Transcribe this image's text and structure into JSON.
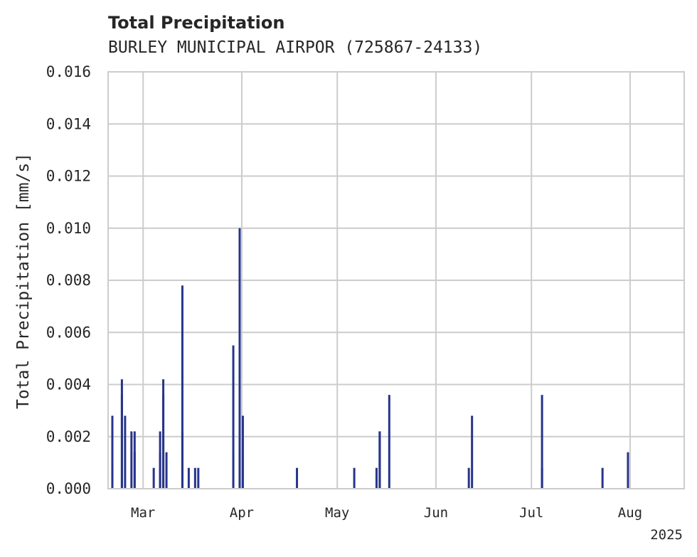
{
  "chart_data": {
    "type": "bar",
    "title": "Total Precipitation",
    "subtitle": "BURLEY MUNICIPAL AIRPOR (725867-24133)",
    "xlabel": "",
    "ylabel": "Total Precipitation [mm/s]",
    "ylim": [
      0,
      0.016
    ],
    "yticks": [
      "0.000",
      "0.002",
      "0.004",
      "0.006",
      "0.008",
      "0.010",
      "0.012",
      "0.014",
      "0.016"
    ],
    "xlim": [
      "2025-02-18",
      "2025-08-18"
    ],
    "xticks": [
      {
        "label": "Mar",
        "date": "2025-03-01"
      },
      {
        "label": "Apr",
        "date": "2025-04-01"
      },
      {
        "label": "May",
        "date": "2025-05-01"
      },
      {
        "label": "Jun",
        "date": "2025-06-01"
      },
      {
        "label": "Jul",
        "date": "2025-07-01"
      },
      {
        "label": "Aug",
        "date": "2025-08-01"
      }
    ],
    "year_label": "2025",
    "grid": true,
    "color": "#27348b",
    "series": [
      {
        "name": "Total Precipitation",
        "points": [
          {
            "date": "2025-02-19",
            "value": 0.0028
          },
          {
            "date": "2025-02-19",
            "value": 0.0008
          },
          {
            "date": "2025-02-22",
            "value": 0.0036
          },
          {
            "date": "2025-02-22",
            "value": 0.0042
          },
          {
            "date": "2025-02-23",
            "value": 0.0028
          },
          {
            "date": "2025-02-25",
            "value": 0.0022
          },
          {
            "date": "2025-02-26",
            "value": 0.0022
          },
          {
            "date": "2025-02-26",
            "value": 0.0014
          },
          {
            "date": "2025-03-04",
            "value": 0.0008
          },
          {
            "date": "2025-03-06",
            "value": 0.0014
          },
          {
            "date": "2025-03-06",
            "value": 0.0022
          },
          {
            "date": "2025-03-07",
            "value": 0.0042
          },
          {
            "date": "2025-03-07",
            "value": 0.0036
          },
          {
            "date": "2025-03-08",
            "value": 0.0014
          },
          {
            "date": "2025-03-13",
            "value": 0.0078
          },
          {
            "date": "2025-03-13",
            "value": 0.0022
          },
          {
            "date": "2025-03-15",
            "value": 0.0008
          },
          {
            "date": "2025-03-17",
            "value": 0.0008
          },
          {
            "date": "2025-03-18",
            "value": 0.0008
          },
          {
            "date": "2025-03-29",
            "value": 0.0055
          },
          {
            "date": "2025-03-29",
            "value": 0.0014
          },
          {
            "date": "2025-03-31",
            "value": 0.01
          },
          {
            "date": "2025-03-31",
            "value": 0.0014
          },
          {
            "date": "2025-04-01",
            "value": 0.0028
          },
          {
            "date": "2025-04-18",
            "value": 0.0008
          },
          {
            "date": "2025-05-06",
            "value": 0.0008
          },
          {
            "date": "2025-05-13",
            "value": 0.0008
          },
          {
            "date": "2025-05-14",
            "value": 0.0022
          },
          {
            "date": "2025-05-14",
            "value": 0.0022
          },
          {
            "date": "2025-05-17",
            "value": 0.0036
          },
          {
            "date": "2025-06-11",
            "value": 0.0008
          },
          {
            "date": "2025-06-12",
            "value": 0.0028
          },
          {
            "date": "2025-07-04",
            "value": 0.0036
          },
          {
            "date": "2025-07-04",
            "value": 0.0008
          },
          {
            "date": "2025-07-23",
            "value": 0.0008
          },
          {
            "date": "2025-07-31",
            "value": 0.0014
          }
        ]
      }
    ]
  }
}
